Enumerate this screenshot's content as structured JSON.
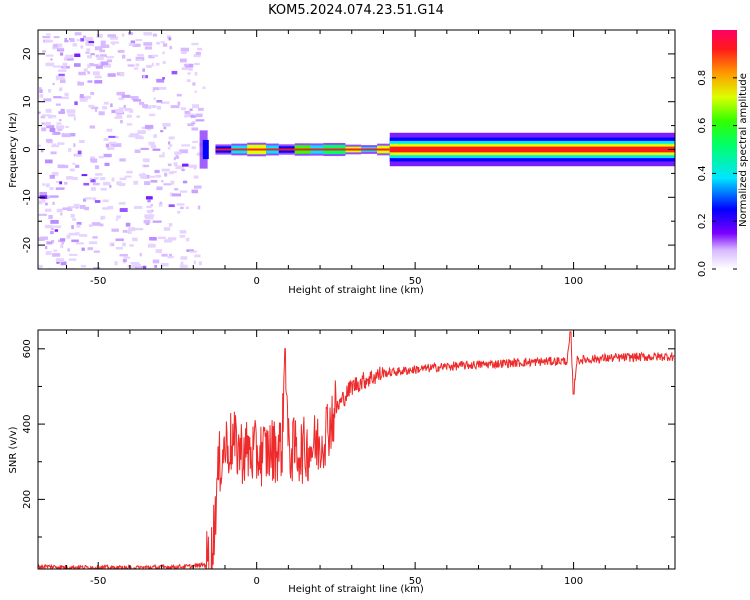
{
  "title": "KOM5.2024.074.23.51.G14",
  "chart_data": [
    {
      "type": "heatmap",
      "xlabel": "Height of straight line (km)",
      "ylabel": "Frequency (Hz)",
      "xlim": [
        -69,
        132
      ],
      "ylim": [
        -25,
        25
      ],
      "x_ticks": [
        -50,
        0,
        50,
        100
      ],
      "y_ticks": [
        -20,
        -10,
        0,
        10,
        20
      ],
      "colorbar": {
        "label": "Normalized spectral amplitude",
        "range": [
          0,
          1
        ],
        "ticks": [
          "0.0",
          "0.2",
          "0.4",
          "0.6",
          "0.8"
        ]
      },
      "features": {
        "noise_region_km": [
          -69,
          -17
        ],
        "signal_onset_km": -16,
        "carrier_frequency_hz": 0
      }
    },
    {
      "type": "line",
      "xlabel": "Height of straight line (km)",
      "ylabel": "SNR (v/v)",
      "xlim": [
        -69,
        132
      ],
      "ylim": [
        15,
        650
      ],
      "x_ticks": [
        -50,
        0,
        50,
        100
      ],
      "y_ticks": [
        200,
        400,
        600
      ],
      "series": [
        {
          "color": "#ee2a2a",
          "x": [
            -69,
            -60,
            -50,
            -40,
            -30,
            -20,
            -16,
            -14,
            -13,
            -12,
            -11,
            -10,
            -8,
            -5,
            0,
            5,
            8,
            9,
            10,
            15,
            20,
            25,
            30,
            35,
            40,
            50,
            60,
            70,
            80,
            90,
            98,
            99,
            100,
            101,
            110,
            120,
            132
          ],
          "y": [
            22,
            20,
            19,
            18,
            20,
            22,
            28,
            60,
            180,
            280,
            320,
            340,
            350,
            330,
            320,
            330,
            340,
            600,
            330,
            330,
            350,
            440,
            500,
            520,
            535,
            545,
            553,
            558,
            562,
            566,
            568,
            640,
            480,
            570,
            575,
            578,
            580
          ]
        }
      ]
    }
  ]
}
